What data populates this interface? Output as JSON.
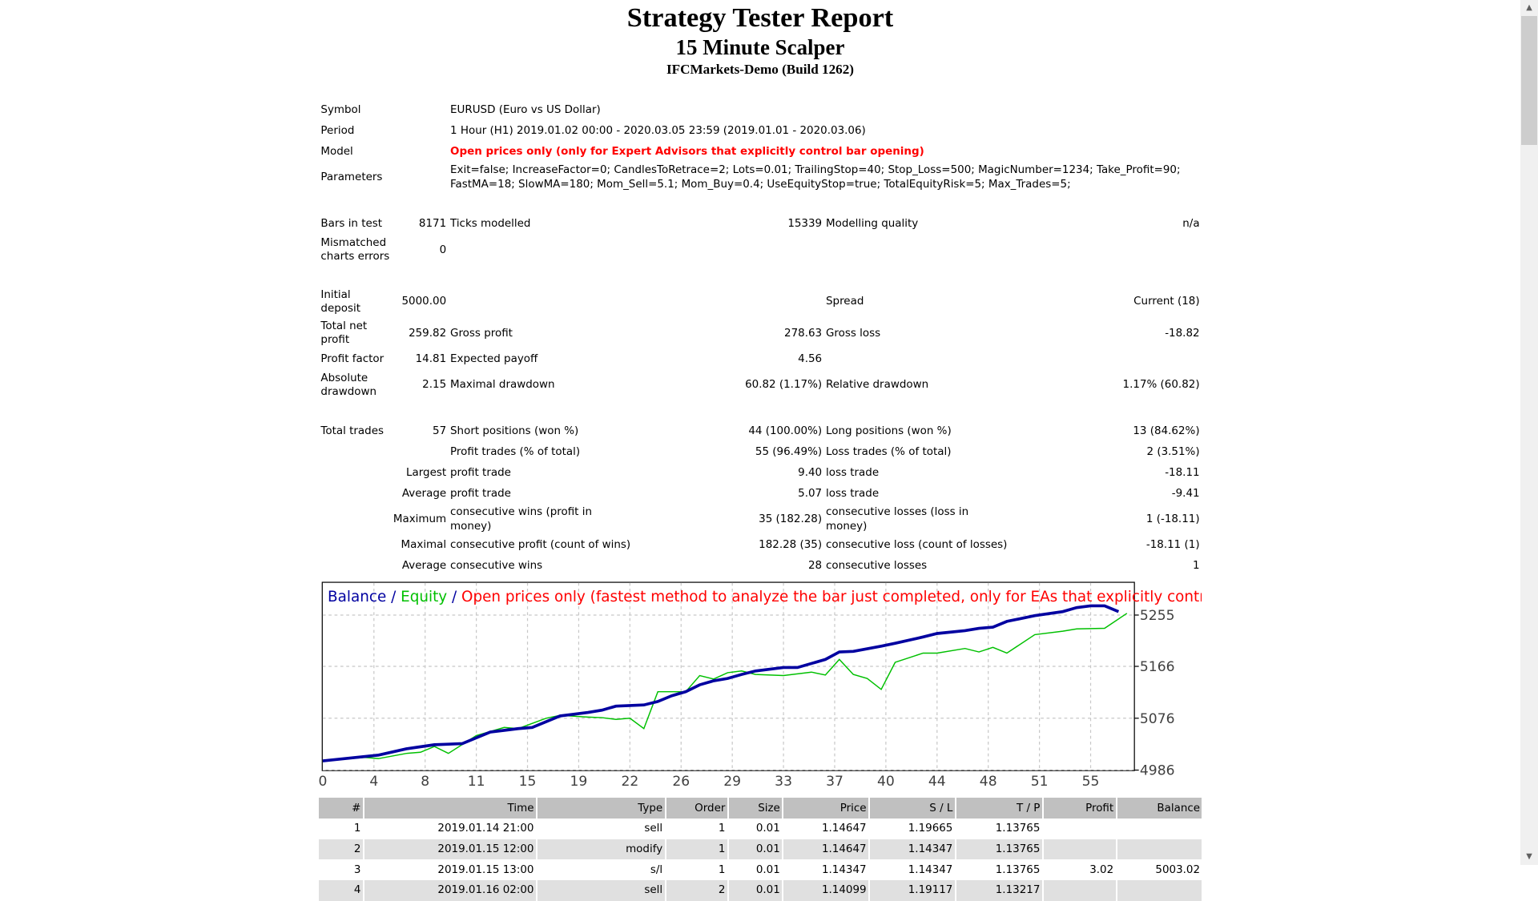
{
  "header": {
    "title": "Strategy Tester Report",
    "expert": "15 Minute Scalper",
    "server": "IFCMarkets-Demo (Build 1262)"
  },
  "settings": {
    "symbol_label": "Symbol",
    "symbol": "EURUSD (Euro vs US Dollar)",
    "period_label": "Period",
    "period": "1 Hour (H1) 2019.01.02 00:00 - 2020.03.05 23:59 (2019.01.01 - 2020.03.06)",
    "model_label": "Model",
    "model": "Open prices only (only for Expert Advisors that explicitly control bar opening)",
    "parameters_label": "Parameters",
    "parameters_line1": "Exit=false; IncreaseFactor=0; CandlesToRetrace=2; Lots=0.01; TrailingStop=40; Stop_Loss=500; MagicNumber=1234; Take_Profit=90;",
    "parameters_line2": "FastMA=18; SlowMA=180; Mom_Sell=5.1; Mom_Buy=0.4; UseEquityStop=true; TotalEquityRisk=5; Max_Trades=5;",
    "model_color": "#ff0000"
  },
  "stats": {
    "bars_label": "Bars in test",
    "bars": "8171",
    "ticks_label": "Ticks modelled",
    "ticks": "15339",
    "quality_label": "Modelling quality",
    "quality": "n/a",
    "mismatch_label_1": "Mismatched",
    "mismatch_label_2": "charts errors",
    "mismatch": "0",
    "deposit_label": "Initial deposit",
    "deposit": "5000.00",
    "spread_label": "Spread",
    "spread": "Current (18)",
    "net_label_1": "Total net",
    "net_label_2": "profit",
    "net": "259.82",
    "gross_profit_label": "Gross profit",
    "gross_profit": "278.63",
    "gross_loss_label": "Gross loss",
    "gross_loss": "-18.82",
    "pf_label": "Profit factor",
    "pf": "14.81",
    "payoff_label": "Expected payoff",
    "payoff": "4.56",
    "absdd_label_1": "Absolute",
    "absdd_label_2": "drawdown",
    "absdd": "2.15",
    "maxdd_label": "Maximal drawdown",
    "maxdd": "60.82 (1.17%)",
    "reldd_label": "Relative drawdown",
    "reldd": "1.17% (60.82)",
    "trades_label": "Total trades",
    "trades": "57",
    "short_label": "Short positions (won %)",
    "short": "44 (100.00%)",
    "long_label": "Long positions (won %)",
    "long": "13 (84.62%)",
    "profit_trades_label": "Profit trades (% of total)",
    "profit_trades": "55 (96.49%)",
    "loss_trades_label": "Loss trades (% of total)",
    "loss_trades": "2 (3.51%)",
    "largest_label": "Largest",
    "largest_profit_label": "profit trade",
    "largest_profit": "9.40",
    "largest_loss_label": "loss trade",
    "largest_loss": "-18.11",
    "average_label": "Average",
    "avg_profit_label": "profit trade",
    "avg_profit": "5.07",
    "avg_loss_label": "loss trade",
    "avg_loss": "-9.41",
    "maximum_label": "Maximum",
    "max_wins_label": "consecutive wins (profit in money)",
    "max_wins": "35 (182.28)",
    "max_losses_label": "consecutive losses (loss in money)",
    "max_losses": "1 (-18.11)",
    "maximal_label": "Maximal",
    "maxl_profit_label": "consecutive profit (count of wins)",
    "maxl_profit": "182.28 (35)",
    "maxl_loss_label": "consecutive loss (count of losses)",
    "maxl_loss": "-18.11 (1)",
    "average2_label": "Average",
    "avg_wins_label": "consecutive wins",
    "avg_wins": "28",
    "avg_losses_label": "consecutive losses",
    "avg_losses": "1"
  },
  "chart_data": {
    "type": "line",
    "legend_balance": "Balance",
    "legend_sep": " / ",
    "legend_equity": "Equity",
    "legend_model": "Open prices only (fastest method to analyze the bar just completed, only for EAs that explicitly control b",
    "xlim": [
      0,
      58.1
    ],
    "ylim": [
      4986,
      5311
    ],
    "grid": true,
    "x_ticks": [
      "0",
      "4",
      "8",
      "11",
      "15",
      "19",
      "22",
      "26",
      "29",
      "33",
      "37",
      "40",
      "44",
      "48",
      "51",
      "55"
    ],
    "y_ticks": [
      5255,
      5166,
      5076,
      4986
    ],
    "series": [
      {
        "name": "Balance",
        "color": "#0000a0",
        "x": [
          0,
          4,
          6,
          8,
          9,
          10,
          12,
          14,
          15,
          17,
          19,
          20,
          21,
          23,
          24,
          25,
          26,
          27,
          28,
          29,
          30,
          31,
          33,
          34,
          36,
          37,
          38,
          40,
          41,
          43,
          44,
          46,
          47,
          48,
          49,
          51,
          53,
          54,
          55,
          56,
          57
        ],
        "y": [
          5002,
          5012,
          5023,
          5030,
          5031,
          5032,
          5052,
          5058,
          5060,
          5080,
          5086,
          5090,
          5097,
          5099,
          5105,
          5115,
          5122,
          5134,
          5141,
          5145,
          5152,
          5158,
          5164,
          5164,
          5178,
          5191,
          5192,
          5201,
          5206,
          5217,
          5223,
          5228,
          5232,
          5234,
          5244,
          5254,
          5261,
          5268,
          5271,
          5271,
          5261
        ]
      },
      {
        "name": "Equity",
        "color": "#00c000",
        "x": [
          0,
          3,
          4,
          6,
          7,
          8,
          9,
          11,
          13,
          14,
          16,
          17,
          19,
          20,
          21,
          22,
          23,
          24,
          26,
          27,
          28,
          29,
          30,
          31,
          33,
          35,
          36,
          37,
          38,
          39,
          40,
          41,
          43,
          44,
          46,
          47,
          48,
          49,
          51,
          53,
          54,
          56,
          57.6
        ],
        "y": [
          5002,
          5008,
          5006,
          5015,
          5017,
          5027,
          5015,
          5046,
          5060,
          5058,
          5076,
          5081,
          5078,
          5077,
          5074,
          5076,
          5058,
          5122,
          5122,
          5150,
          5144,
          5155,
          5158,
          5152,
          5150,
          5156,
          5151,
          5178,
          5152,
          5145,
          5126,
          5173,
          5189,
          5189,
          5197,
          5191,
          5199,
          5189,
          5221,
          5227,
          5231,
          5232,
          5258
        ]
      }
    ]
  },
  "deals": {
    "headers": [
      "#",
      "Time",
      "Type",
      "Order",
      "Size",
      "Price",
      "S / L",
      "T / P",
      "Profit",
      "Balance"
    ],
    "rows": [
      [
        "1",
        "2019.01.14 21:00",
        "sell",
        "1",
        "0.01",
        "1.14647",
        "1.19665",
        "1.13765",
        "",
        ""
      ],
      [
        "2",
        "2019.01.15 12:00",
        "modify",
        "1",
        "0.01",
        "1.14647",
        "1.14347",
        "1.13765",
        "",
        ""
      ],
      [
        "3",
        "2019.01.15 13:00",
        "s/l",
        "1",
        "0.01",
        "1.14347",
        "1.14347",
        "1.13765",
        "3.02",
        "5003.02"
      ],
      [
        "4",
        "2019.01.16 02:00",
        "sell",
        "2",
        "0.01",
        "1.14099",
        "1.19117",
        "1.13217",
        "",
        ""
      ]
    ]
  }
}
